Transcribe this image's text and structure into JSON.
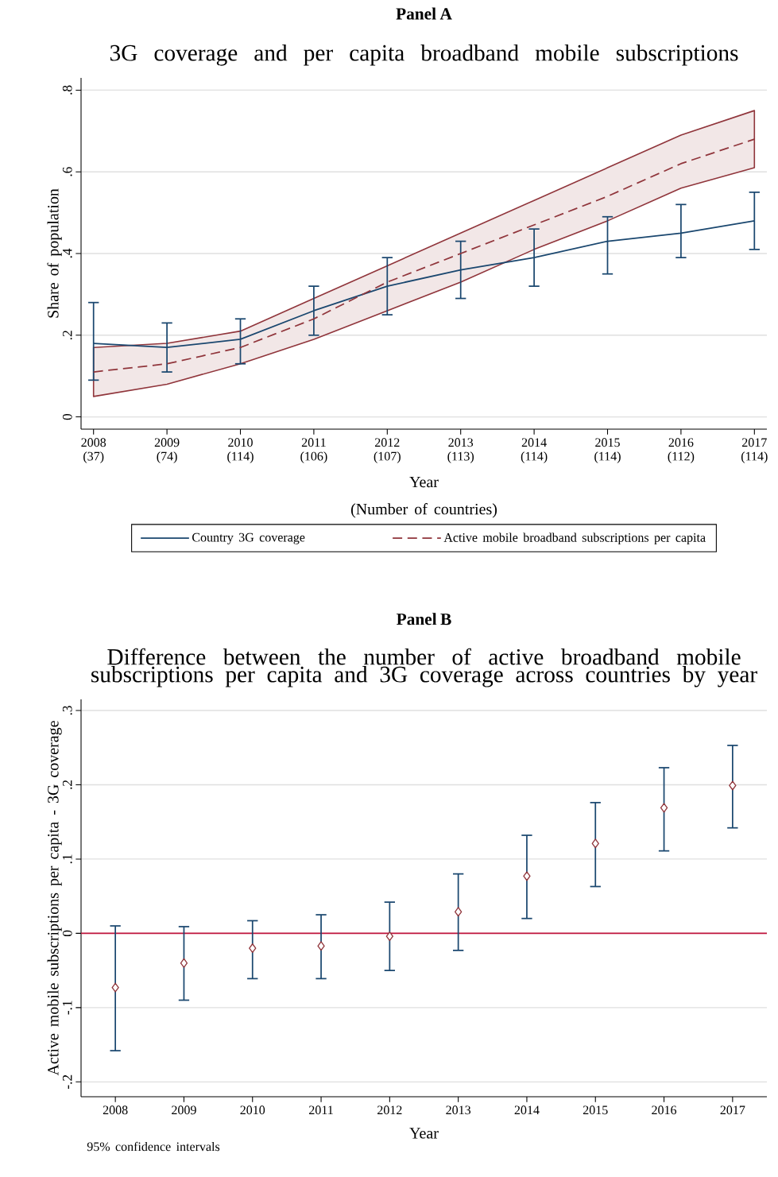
{
  "chart_data": [
    {
      "type": "line",
      "title": "Panel A",
      "subtitle": "3G coverage and per capita broadband mobile subscriptions",
      "xlabel": "Year",
      "ylabel": "Share of population",
      "annotations": [
        "(Number of countries)"
      ],
      "categories": [
        "2008 (37)",
        "2009 (74)",
        "2010 (114)",
        "2011 (106)",
        "2012 (107)",
        "2013 (113)",
        "2014 (114)",
        "2015 (114)",
        "2016 (112)",
        "2017 (114)"
      ],
      "series": [
        {
          "name": "Country 3G coverage",
          "color": "#1a476f",
          "line_style": "solid",
          "values": [
            0.18,
            0.17,
            0.19,
            0.26,
            0.32,
            0.36,
            0.39,
            0.43,
            0.45,
            0.48
          ],
          "errors": [
            [
              0.09,
              0.28
            ],
            [
              0.11,
              0.23
            ],
            [
              0.13,
              0.24
            ],
            [
              0.2,
              0.32
            ],
            [
              0.25,
              0.39
            ],
            [
              0.29,
              0.43
            ],
            [
              0.32,
              0.46
            ],
            [
              0.35,
              0.49
            ],
            [
              0.39,
              0.52
            ],
            [
              0.41,
              0.55
            ]
          ]
        },
        {
          "name": "Active mobile broadband subscriptions per capita",
          "color": "#90353b",
          "line_style": "dashed",
          "values": [
            0.11,
            0.13,
            0.17,
            0.24,
            0.33,
            0.4,
            0.47,
            0.54,
            0.62,
            0.68
          ],
          "lower": [
            0.05,
            0.08,
            0.13,
            0.19,
            0.26,
            0.33,
            0.41,
            0.48,
            0.56,
            0.61
          ],
          "upper": [
            0.17,
            0.18,
            0.21,
            0.29,
            0.37,
            0.45,
            0.53,
            0.61,
            0.69,
            0.75
          ]
        }
      ],
      "ylim": [
        -0.03,
        0.83
      ],
      "yticks": [
        0,
        {
          "value": 0.2,
          "label": ".2"
        },
        {
          "value": 0.4,
          "label": ".4"
        },
        {
          "value": 0.6,
          "label": ".6"
        },
        {
          "value": 0.8,
          "label": ".8"
        }
      ],
      "grid": "y",
      "legend": "bottom",
      "marker": "none"
    },
    {
      "type": "scatter",
      "title": "Panel B",
      "subtitle": "Difference between the number of active broadband mobile subscriptions per capita and 3G coverage across countries by year",
      "xlabel": "Year",
      "ylabel": "Active mobile subscriptions per capita - 3G coverage",
      "annotations": [
        "95% confidence intervals"
      ],
      "categories": [
        "2008",
        "2009",
        "2010",
        "2011",
        "2012",
        "2013",
        "2014",
        "2015",
        "2016",
        "2017"
      ],
      "series": [
        {
          "color": "#90353b",
          "values": [
            -0.073,
            -0.04,
            -0.02,
            -0.017,
            -0.004,
            0.029,
            0.077,
            0.121,
            0.169,
            0.199
          ],
          "errors": [
            [
              -0.158,
              0.01
            ],
            [
              -0.09,
              0.009
            ],
            [
              -0.061,
              0.017
            ],
            [
              -0.061,
              0.025
            ],
            [
              -0.05,
              0.042
            ],
            [
              -0.023,
              0.08
            ],
            [
              0.02,
              0.132
            ],
            [
              0.063,
              0.176
            ],
            [
              0.111,
              0.223
            ],
            [
              0.142,
              0.253
            ]
          ]
        }
      ],
      "ylim": [
        -0.22,
        0.315
      ],
      "yticks": [
        {
          "value": -0.2,
          "label": "-.2"
        },
        {
          "value": -0.1,
          "label": "-.1"
        },
        0,
        {
          "value": 0.1,
          "label": ".1"
        },
        {
          "value": 0.2,
          "label": ".2"
        },
        {
          "value": 0.3,
          "label": ".3"
        }
      ],
      "ref_lines": [
        {
          "axis": "y",
          "value": 0,
          "color": "#c0143c"
        }
      ],
      "grid": "y",
      "marker": "diamond"
    }
  ]
}
